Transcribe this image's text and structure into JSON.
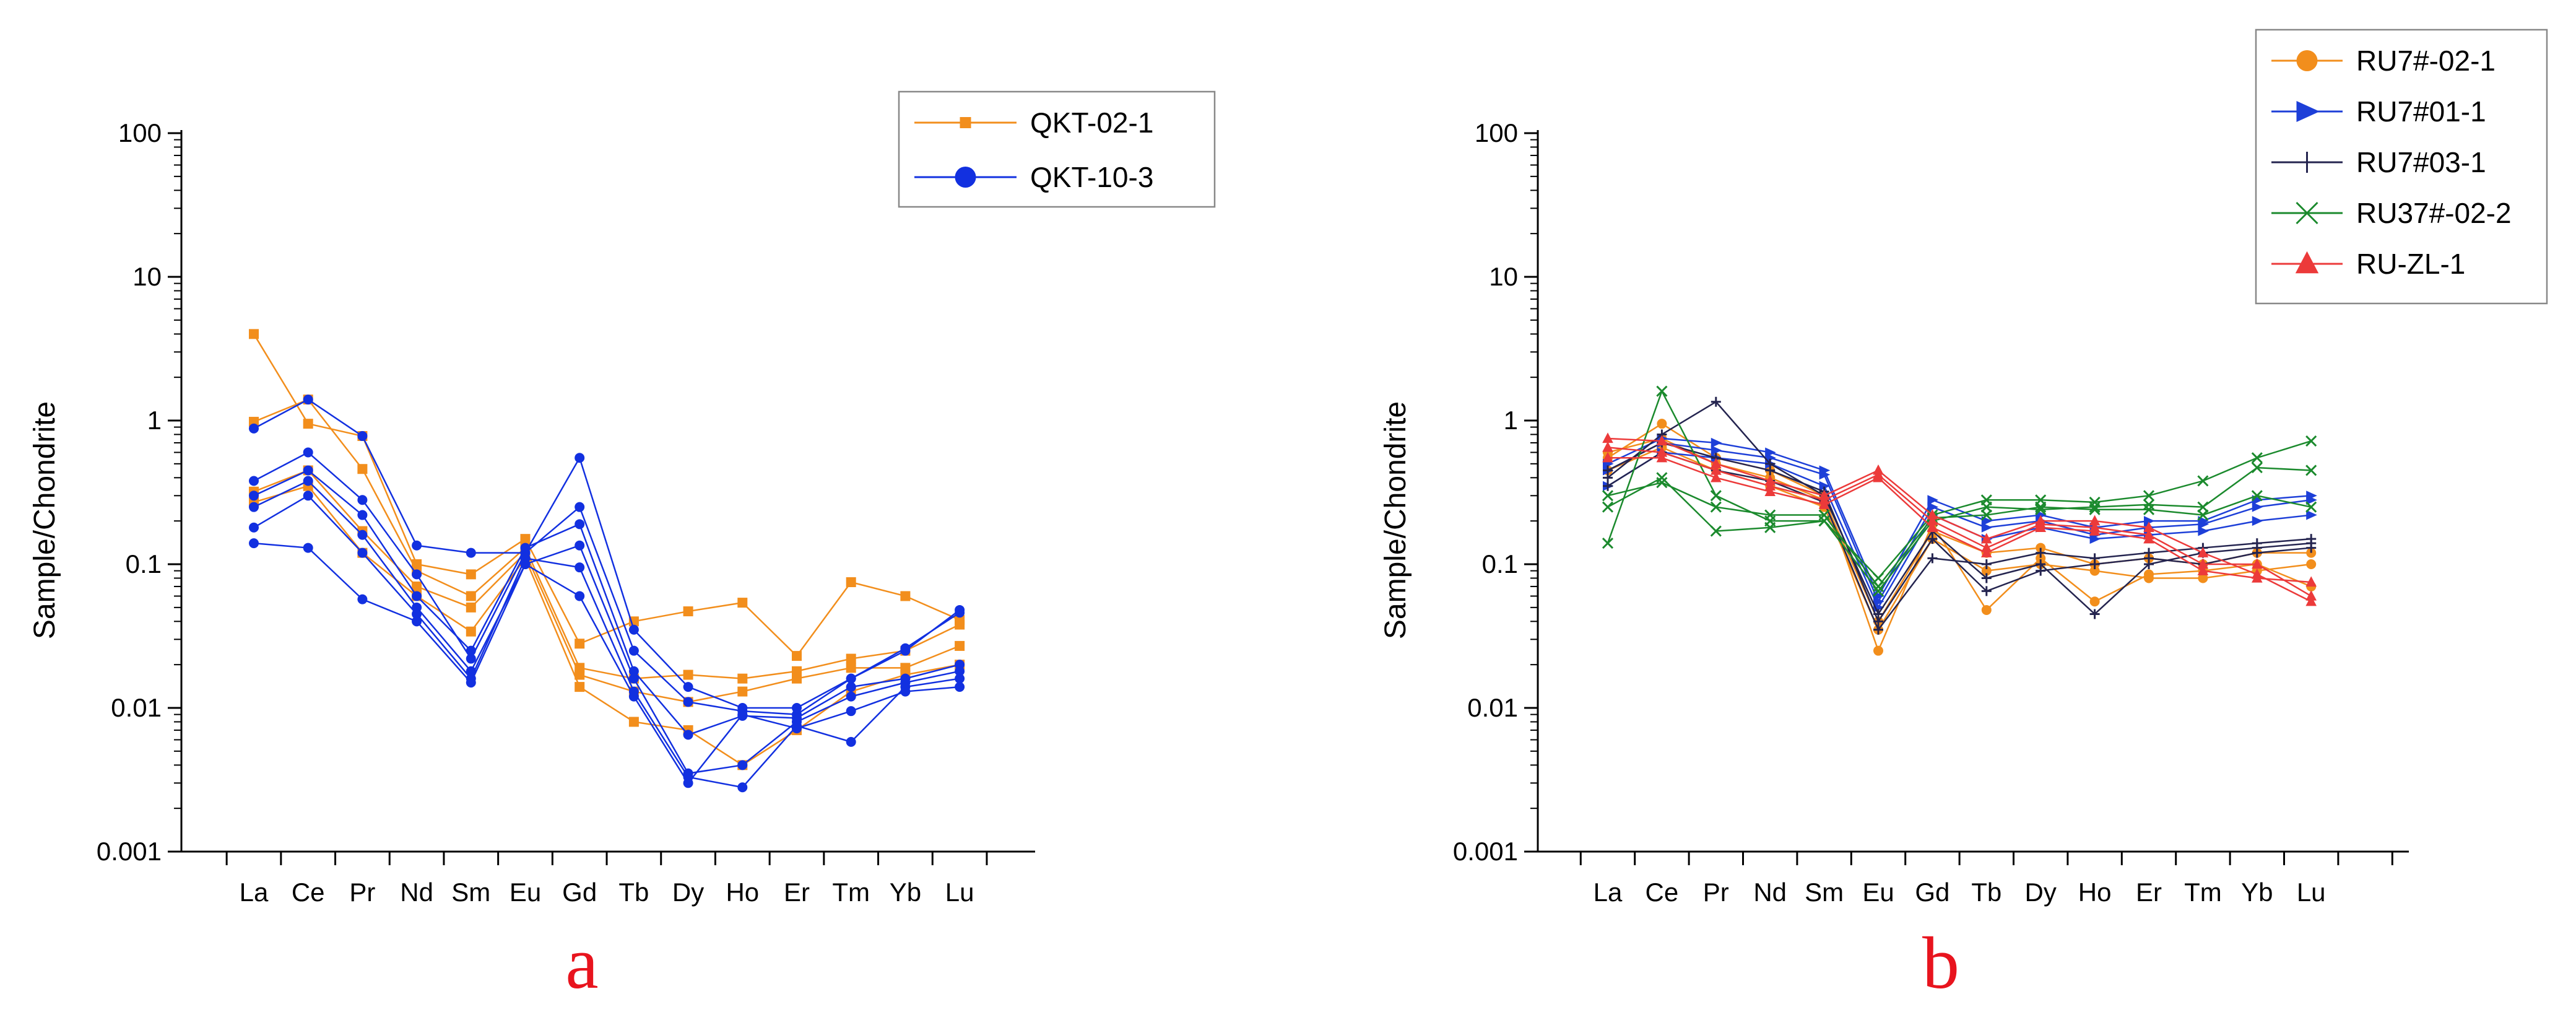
{
  "chart_data": [
    {
      "type": "line",
      "panel_label": "a",
      "ylabel": "Sample/Chondrite",
      "xlabel": "",
      "yscale": "log",
      "ylim": [
        0.001,
        100
      ],
      "ytick_labels": [
        "100",
        "10",
        "1",
        "0.1",
        "0.01",
        "0.001"
      ],
      "ytick_values": [
        100,
        10,
        1,
        0.1,
        0.01,
        0.001
      ],
      "categories": [
        "La",
        "Ce",
        "Pr",
        "Nd",
        "Sm",
        "Eu",
        "Gd",
        "Tb",
        "Dy",
        "Ho",
        "Er",
        "Tm",
        "Yb",
        "Lu"
      ],
      "legend_position": "top-right",
      "groups": [
        {
          "name": "QKT-02-1",
          "color": "#f28e1c",
          "marker": "square",
          "lines": [
            [
              4.0,
              0.95,
              0.78,
              0.1,
              0.085,
              0.15,
              0.028,
              0.04,
              0.047,
              0.054,
              0.023,
              0.075,
              0.06,
              0.041
            ],
            [
              0.98,
              1.4,
              0.46,
              0.09,
              0.06,
              0.13,
              0.019,
              0.016,
              0.017,
              0.016,
              0.018,
              0.022,
              0.025,
              0.038
            ],
            [
              0.32,
              0.45,
              0.17,
              0.07,
              0.05,
              0.12,
              0.017,
              0.013,
              0.011,
              0.013,
              0.016,
              0.019,
              0.019,
              0.027
            ],
            [
              0.27,
              0.35,
              0.12,
              0.06,
              0.034,
              0.11,
              0.014,
              0.008,
              0.007,
              0.004,
              0.007,
              0.013,
              0.017,
              0.02
            ]
          ]
        },
        {
          "name": "QKT-10-3",
          "color": "#1230e0",
          "marker": "circle",
          "lines": [
            [
              0.88,
              1.4,
              0.78,
              0.135,
              0.12,
              0.12,
              0.55,
              0.035,
              0.014,
              0.01,
              0.01,
              0.016,
              0.026,
              0.046
            ],
            [
              0.38,
              0.6,
              0.28,
              0.085,
              0.022,
              0.12,
              0.25,
              0.025,
              0.011,
              0.0095,
              0.009,
              0.016,
              0.025,
              0.048
            ],
            [
              0.3,
              0.45,
              0.22,
              0.06,
              0.025,
              0.13,
              0.19,
              0.018,
              0.0065,
              0.0088,
              0.0085,
              0.014,
              0.016,
              0.02
            ],
            [
              0.25,
              0.38,
              0.16,
              0.05,
              0.018,
              0.1,
              0.135,
              0.016,
              0.0035,
              0.004,
              0.008,
              0.012,
              0.015,
              0.018
            ],
            [
              0.18,
              0.3,
              0.12,
              0.045,
              0.016,
              0.11,
              0.095,
              0.013,
              0.0033,
              0.0028,
              0.0075,
              0.0058,
              0.014,
              0.016
            ],
            [
              0.14,
              0.13,
              0.057,
              0.04,
              0.015,
              0.1,
              0.06,
              0.012,
              0.003,
              0.009,
              0.0072,
              0.0095,
              0.013,
              0.014
            ]
          ]
        }
      ]
    },
    {
      "type": "line",
      "panel_label": "b",
      "ylabel": "Sample/Chondrite",
      "xlabel": "",
      "yscale": "log",
      "ylim": [
        0.001,
        100
      ],
      "ytick_labels": [
        "100",
        "10",
        "1",
        "0.1",
        "0.01",
        "0.001"
      ],
      "ytick_values": [
        100,
        10,
        1,
        0.1,
        0.01,
        0.001
      ],
      "categories": [
        "La",
        "Ce",
        "Pr",
        "Nd",
        "Sm",
        "Eu",
        "Gd",
        "Tb",
        "Dy",
        "Ho",
        "Er",
        "Tm",
        "Yb",
        "Lu"
      ],
      "legend_position": "top-right",
      "groups": [
        {
          "name": "RU7#-02-1",
          "color": "#f28e1c",
          "marker": "circle",
          "lines": [
            [
              0.55,
              0.95,
              0.55,
              0.45,
              0.3,
              0.025,
              0.19,
              0.048,
              0.11,
              0.055,
              0.085,
              0.09,
              0.1,
              0.07
            ],
            [
              0.6,
              0.75,
              0.5,
              0.4,
              0.28,
              0.04,
              0.17,
              0.12,
              0.13,
              0.1,
              0.11,
              0.1,
              0.12,
              0.12
            ],
            [
              0.45,
              0.65,
              0.45,
              0.35,
              0.25,
              0.035,
              0.15,
              0.09,
              0.1,
              0.09,
              0.08,
              0.08,
              0.09,
              0.1
            ]
          ]
        },
        {
          "name": "RU7#01-1",
          "color": "#1d3fd8",
          "marker": "triangle-right",
          "lines": [
            [
              0.5,
              0.75,
              0.7,
              0.6,
              0.45,
              0.06,
              0.28,
              0.2,
              0.22,
              0.18,
              0.2,
              0.2,
              0.28,
              0.3
            ],
            [
              0.45,
              0.7,
              0.62,
              0.55,
              0.42,
              0.055,
              0.25,
              0.18,
              0.2,
              0.16,
              0.18,
              0.19,
              0.25,
              0.28
            ],
            [
              0.35,
              0.6,
              0.55,
              0.5,
              0.35,
              0.05,
              0.22,
              0.15,
              0.18,
              0.15,
              0.16,
              0.17,
              0.2,
              0.22
            ]
          ]
        },
        {
          "name": "RU7#03-1",
          "color": "#24244f",
          "marker": "plus",
          "lines": [
            [
              0.4,
              0.8,
              1.35,
              0.5,
              0.3,
              0.045,
              0.17,
              0.08,
              0.1,
              0.045,
              0.1,
              0.12,
              0.13,
              0.14
            ],
            [
              0.45,
              0.7,
              0.55,
              0.45,
              0.32,
              0.04,
              0.15,
              0.065,
              0.09,
              0.1,
              0.11,
              0.1,
              0.12,
              0.13
            ],
            [
              0.35,
              0.6,
              0.45,
              0.38,
              0.27,
              0.035,
              0.11,
              0.1,
              0.12,
              0.11,
              0.12,
              0.13,
              0.14,
              0.15
            ]
          ]
        },
        {
          "name": "RU37#-02-2",
          "color": "#1b8a2d",
          "marker": "x",
          "lines": [
            [
              0.14,
              1.6,
              0.3,
              0.2,
              0.2,
              0.08,
              0.22,
              0.28,
              0.28,
              0.27,
              0.3,
              0.38,
              0.55,
              0.72
            ],
            [
              0.25,
              0.4,
              0.17,
              0.18,
              0.2,
              0.065,
              0.2,
              0.25,
              0.24,
              0.25,
              0.26,
              0.25,
              0.47,
              0.45
            ],
            [
              0.3,
              0.37,
              0.25,
              0.22,
              0.22,
              0.07,
              0.21,
              0.22,
              0.25,
              0.24,
              0.24,
              0.22,
              0.3,
              0.25
            ]
          ]
        },
        {
          "name": "RU-ZL-1",
          "color": "#ec3a3a",
          "marker": "triangle-up",
          "lines": [
            [
              0.75,
              0.72,
              0.5,
              0.38,
              0.3,
              0.45,
              0.22,
              0.15,
              0.2,
              0.2,
              0.18,
              0.12,
              0.085,
              0.055
            ],
            [
              0.65,
              0.6,
              0.45,
              0.35,
              0.28,
              0.42,
              0.2,
              0.13,
              0.19,
              0.18,
              0.16,
              0.1,
              0.1,
              0.06
            ],
            [
              0.55,
              0.55,
              0.4,
              0.32,
              0.26,
              0.4,
              0.18,
              0.12,
              0.18,
              0.17,
              0.15,
              0.09,
              0.08,
              0.075
            ]
          ]
        }
      ]
    }
  ]
}
